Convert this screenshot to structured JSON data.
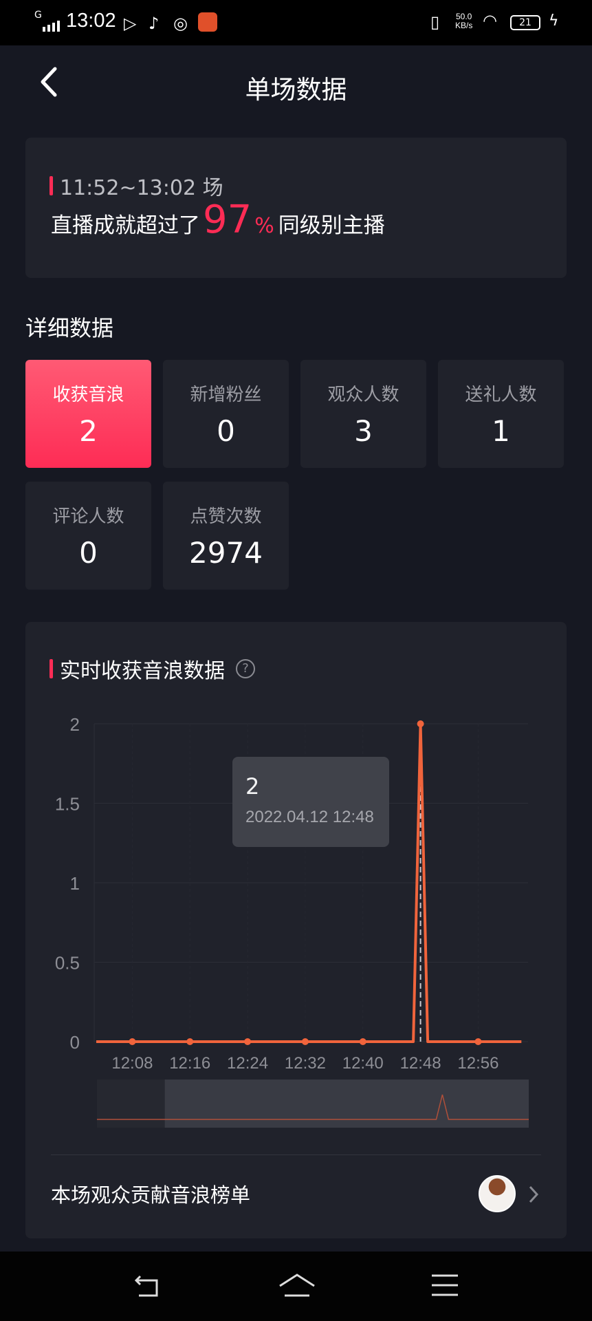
{
  "status_bar": {
    "network": "G",
    "time": "13:02",
    "speed_value": "50.0",
    "speed_unit": "KB/s",
    "battery": "21"
  },
  "header": {
    "title": "单场数据",
    "back_icon": "chevron-left-icon"
  },
  "summary": {
    "session": "11:52~13:02 场",
    "prefix": "直播成就超过了",
    "percent": "97",
    "percent_sign": "%",
    "suffix": "同级别主播"
  },
  "detail": {
    "title": "详细数据",
    "tiles": [
      {
        "label": "收获音浪",
        "value": "2"
      },
      {
        "label": "新增粉丝",
        "value": "0"
      },
      {
        "label": "观众人数",
        "value": "3"
      },
      {
        "label": "送礼人数",
        "value": "1"
      },
      {
        "label": "评论人数",
        "value": "0"
      },
      {
        "label": "点赞次数",
        "value": "2974"
      }
    ]
  },
  "chart_section": {
    "title": "实时收获音浪数据",
    "help_icon": "?",
    "rank_label": "本场观众贡献音浪榜单"
  },
  "colors": {
    "accent": "#fe2c55",
    "line": "#f0643c"
  },
  "chart_data": {
    "type": "line",
    "title": "实时收获音浪数据",
    "ylim": [
      0,
      2
    ],
    "y_ticks": [
      "0",
      "0.5",
      "1",
      "1.5",
      "2"
    ],
    "x_ticks": [
      "12:08",
      "12:16",
      "12:24",
      "12:32",
      "12:40",
      "12:48",
      "12:56"
    ],
    "grid": true,
    "x": [
      "12:03",
      "12:04",
      "12:05",
      "12:06",
      "12:07",
      "12:08",
      "12:09",
      "12:10",
      "12:11",
      "12:12",
      "12:13",
      "12:14",
      "12:15",
      "12:16",
      "12:17",
      "12:18",
      "12:19",
      "12:20",
      "12:21",
      "12:22",
      "12:23",
      "12:24",
      "12:25",
      "12:26",
      "12:27",
      "12:28",
      "12:29",
      "12:30",
      "12:31",
      "12:32",
      "12:33",
      "12:34",
      "12:35",
      "12:36",
      "12:37",
      "12:38",
      "12:39",
      "12:40",
      "12:41",
      "12:42",
      "12:43",
      "12:44",
      "12:45",
      "12:46",
      "12:47",
      "12:48",
      "12:49",
      "12:50",
      "12:51",
      "12:52",
      "12:53",
      "12:54",
      "12:55",
      "12:56",
      "12:57",
      "12:58",
      "12:59",
      "13:00",
      "13:01",
      "13:02"
    ],
    "values": [
      0,
      0,
      0,
      0,
      0,
      0,
      0,
      0,
      0,
      0,
      0,
      0,
      0,
      0,
      0,
      0,
      0,
      0,
      0,
      0,
      0,
      0,
      0,
      0,
      0,
      0,
      0,
      0,
      0,
      0,
      0,
      0,
      0,
      0,
      0,
      0,
      0,
      0,
      0,
      0,
      0,
      0,
      0,
      0,
      0,
      2,
      0,
      0,
      0,
      0,
      0,
      0,
      0,
      0,
      0,
      0,
      0,
      0,
      0,
      0
    ],
    "tooltip": {
      "value": "2",
      "datetime": "2022.04.12 12:48"
    },
    "navigator": {
      "range_start": "11:52",
      "range_end": "13:02",
      "selected_start": "12:03",
      "selected_end": "13:02"
    }
  }
}
